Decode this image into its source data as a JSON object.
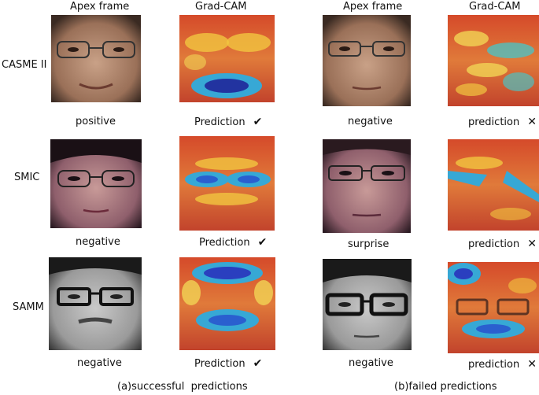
{
  "headers": {
    "left_apex": "Apex frame",
    "left_gradcam": "Grad-CAM",
    "right_apex": "Apex frame",
    "right_gradcam": "Grad-CAM"
  },
  "datasets": [
    "CASME II",
    "SMIC",
    "SAMM"
  ],
  "successful": {
    "labels": [
      "positive",
      "negative",
      "negative"
    ],
    "prediction_text": [
      "Prediction",
      "Prediction",
      "Prediction"
    ],
    "mark": "✔"
  },
  "failed": {
    "labels": [
      "negative",
      "surprise",
      "negative"
    ],
    "prediction_text": [
      "prediction",
      "prediction",
      "prediction"
    ],
    "mark": "✕"
  },
  "captions": {
    "left": "(a)successful  predictions",
    "right": "(b)failed predictions"
  }
}
